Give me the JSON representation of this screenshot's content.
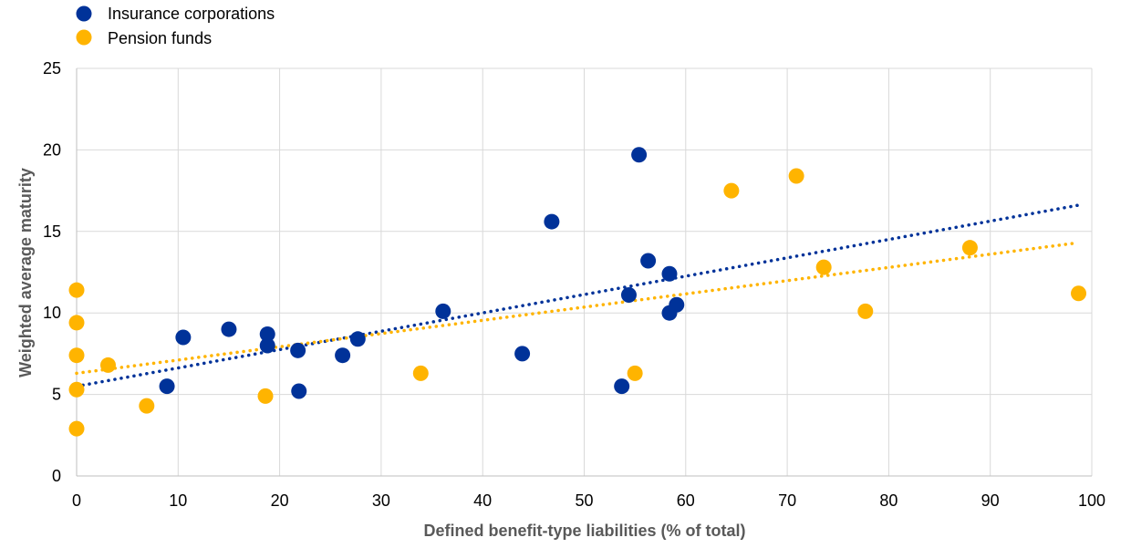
{
  "chart_data": {
    "type": "scatter",
    "xlabel": "Defined benefit-type liabilities (% of total)",
    "ylabel": "Weighted average maturity",
    "xlim": [
      0,
      100
    ],
    "ylim": [
      0,
      25
    ],
    "xticks": [
      0,
      10,
      20,
      30,
      40,
      50,
      60,
      70,
      80,
      90,
      100
    ],
    "yticks": [
      0,
      5,
      10,
      15,
      20,
      25
    ],
    "grid": "vertical and horizontal",
    "legend_position": "top-left",
    "series": [
      {
        "name": "Insurance corporations",
        "color": "#003299",
        "trendline": {
          "style": "dotted",
          "start": [
            0,
            5.5
          ],
          "end": [
            98.6,
            16.6
          ]
        },
        "points": [
          [
            8.9,
            5.5
          ],
          [
            10.5,
            8.5
          ],
          [
            15.0,
            9.0
          ],
          [
            18.8,
            8.7
          ],
          [
            18.8,
            8.0
          ],
          [
            21.8,
            7.7
          ],
          [
            21.9,
            5.2
          ],
          [
            26.2,
            7.4
          ],
          [
            27.7,
            8.4
          ],
          [
            36.1,
            10.1
          ],
          [
            43.9,
            7.5
          ],
          [
            46.8,
            15.6
          ],
          [
            53.7,
            5.5
          ],
          [
            54.4,
            11.1
          ],
          [
            55.4,
            19.7
          ],
          [
            56.3,
            13.2
          ],
          [
            58.4,
            12.4
          ],
          [
            58.4,
            10.0
          ],
          [
            59.1,
            10.5
          ]
        ]
      },
      {
        "name": "Pension funds",
        "color": "#FFB400",
        "trendline": {
          "style": "dotted",
          "start": [
            0,
            6.3
          ],
          "end": [
            98.6,
            14.3
          ]
        },
        "points": [
          [
            0,
            11.4
          ],
          [
            0,
            9.4
          ],
          [
            0,
            7.4
          ],
          [
            0,
            5.3
          ],
          [
            0,
            2.9
          ],
          [
            3.1,
            6.8
          ],
          [
            6.9,
            4.3
          ],
          [
            18.6,
            4.9
          ],
          [
            33.9,
            6.3
          ],
          [
            55.0,
            6.3
          ],
          [
            64.5,
            17.5
          ],
          [
            70.9,
            18.4
          ],
          [
            73.6,
            12.8
          ],
          [
            77.7,
            10.1
          ],
          [
            88.0,
            14.0
          ],
          [
            98.7,
            11.2
          ]
        ]
      }
    ]
  }
}
